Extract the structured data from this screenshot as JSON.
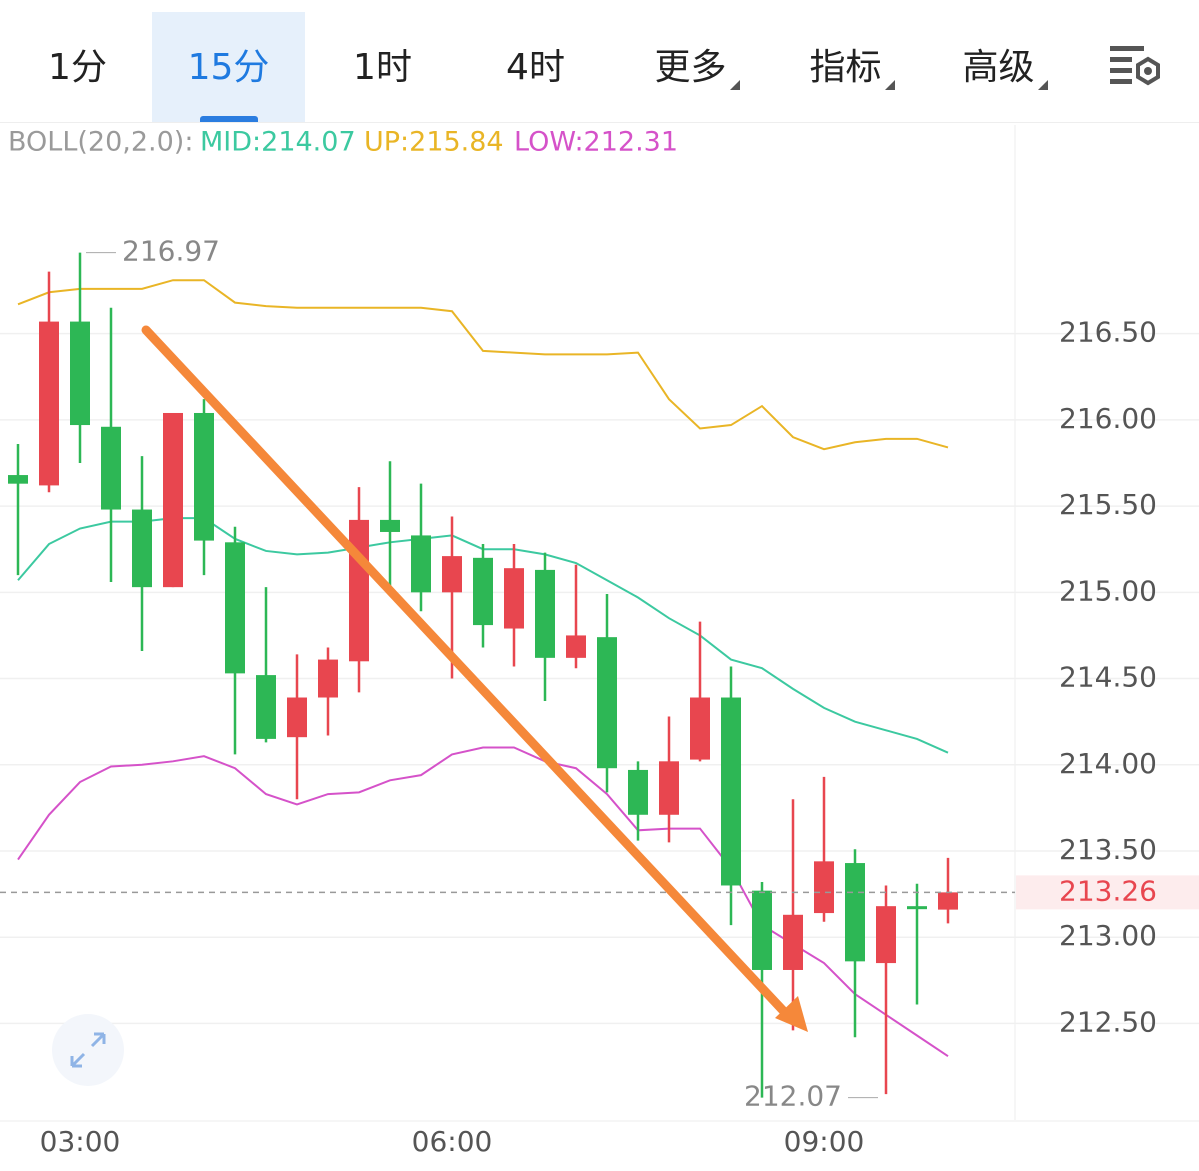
{
  "tabs": [
    "1分",
    "15分",
    "1时",
    "4时",
    "更多",
    "指标",
    "高级"
  ],
  "active_tab": 1,
  "indicator": {
    "name": "BOLL(20,2.0):",
    "mid": "MID:214.07",
    "up": "UP:215.84",
    "low": "LOW:212.31"
  },
  "chart_data": {
    "type": "candlestick",
    "categories": [
      null,
      null,
      "03:00",
      null,
      null,
      null,
      null,
      null,
      null,
      null,
      null,
      null,
      null,
      null,
      "06:00",
      null,
      null,
      null,
      null,
      null,
      null,
      null,
      null,
      null,
      null,
      null,
      "09:00",
      null,
      null,
      null,
      null
    ],
    "open": [
      215.68,
      215.62,
      216.57,
      215.96,
      215.48,
      215.03,
      216.04,
      215.29,
      214.52,
      214.16,
      214.39,
      214.6,
      215.42,
      215.33,
      215.0,
      215.2,
      214.79,
      215.13,
      214.62,
      214.74,
      213.97,
      213.71,
      214.03,
      214.39,
      213.27,
      212.81,
      213.14,
      213.43,
      212.85,
      213.18,
      213.16
    ],
    "high": [
      215.86,
      216.86,
      216.97,
      216.65,
      215.79,
      216.04,
      216.12,
      215.38,
      215.03,
      214.64,
      214.68,
      215.61,
      215.76,
      215.63,
      215.44,
      215.28,
      215.28,
      215.23,
      215.16,
      214.99,
      214.02,
      214.28,
      214.83,
      214.57,
      213.32,
      213.8,
      213.93,
      213.51,
      213.3,
      213.31,
      213.46
    ],
    "low": [
      215.1,
      215.58,
      215.75,
      215.06,
      214.66,
      215.03,
      215.1,
      214.06,
      214.13,
      213.8,
      214.17,
      214.42,
      215.02,
      214.89,
      214.5,
      214.68,
      214.57,
      214.37,
      214.56,
      213.84,
      213.56,
      213.55,
      214.02,
      213.07,
      212.07,
      212.46,
      213.09,
      212.42,
      212.09,
      212.61,
      213.08
    ],
    "close": [
      215.63,
      216.57,
      215.97,
      215.48,
      215.03,
      216.04,
      215.3,
      214.53,
      214.15,
      214.39,
      214.61,
      215.42,
      215.35,
      215.0,
      215.21,
      214.81,
      215.14,
      214.62,
      214.75,
      213.98,
      213.71,
      214.02,
      214.39,
      213.3,
      212.81,
      213.13,
      213.44,
      212.86,
      213.18,
      213.17,
      213.26
    ],
    "up_color": "#e8464f",
    "down_color": "#2db755",
    "bands": [
      {
        "color": "#e9b526",
        "values": [
          216.67,
          216.74,
          216.76,
          216.76,
          216.76,
          216.81,
          216.81,
          216.68,
          216.66,
          216.65,
          216.65,
          216.65,
          216.65,
          216.65,
          216.63,
          216.4,
          216.39,
          216.38,
          216.38,
          216.38,
          216.39,
          216.12,
          215.95,
          215.97,
          216.08,
          215.9,
          215.83,
          215.87,
          215.89,
          215.89,
          215.84
        ]
      },
      {
        "color": "#3cc9a0",
        "values": [
          215.07,
          215.28,
          215.37,
          215.41,
          215.41,
          215.43,
          215.43,
          215.31,
          215.24,
          215.22,
          215.23,
          215.26,
          215.29,
          215.31,
          215.33,
          215.25,
          215.25,
          215.22,
          215.17,
          215.07,
          214.97,
          214.85,
          214.75,
          214.61,
          214.56,
          214.44,
          214.33,
          214.25,
          214.2,
          214.15,
          214.07
        ]
      },
      {
        "color": "#d552c9",
        "values": [
          213.45,
          213.71,
          213.9,
          213.99,
          214.0,
          214.02,
          214.05,
          213.98,
          213.83,
          213.77,
          213.83,
          213.84,
          213.91,
          213.94,
          214.06,
          214.1,
          214.1,
          214.02,
          213.98,
          213.83,
          213.62,
          213.63,
          213.63,
          213.4,
          213.07,
          212.96,
          212.85,
          212.67,
          212.55,
          212.43,
          212.31
        ]
      }
    ],
    "ylim": [
      211.94,
      217.71
    ],
    "yticks": [
      {
        "value": 212.5,
        "label": "212.50"
      },
      {
        "value": 213,
        "label": "213.00"
      },
      {
        "value": 213.5,
        "label": "213.50"
      },
      {
        "value": 214,
        "label": "214.00"
      },
      {
        "value": 214.5,
        "label": "214.50"
      },
      {
        "value": 215,
        "label": "215.00"
      },
      {
        "value": 215.5,
        "label": "215.50"
      },
      {
        "value": 216,
        "label": "216.00"
      },
      {
        "value": 216.5,
        "label": "216.50"
      }
    ],
    "grid": true,
    "high_label": 216.97,
    "high_index": 2,
    "low_label": 212.07,
    "low_index": 24,
    "last_price": 213.26
  }
}
